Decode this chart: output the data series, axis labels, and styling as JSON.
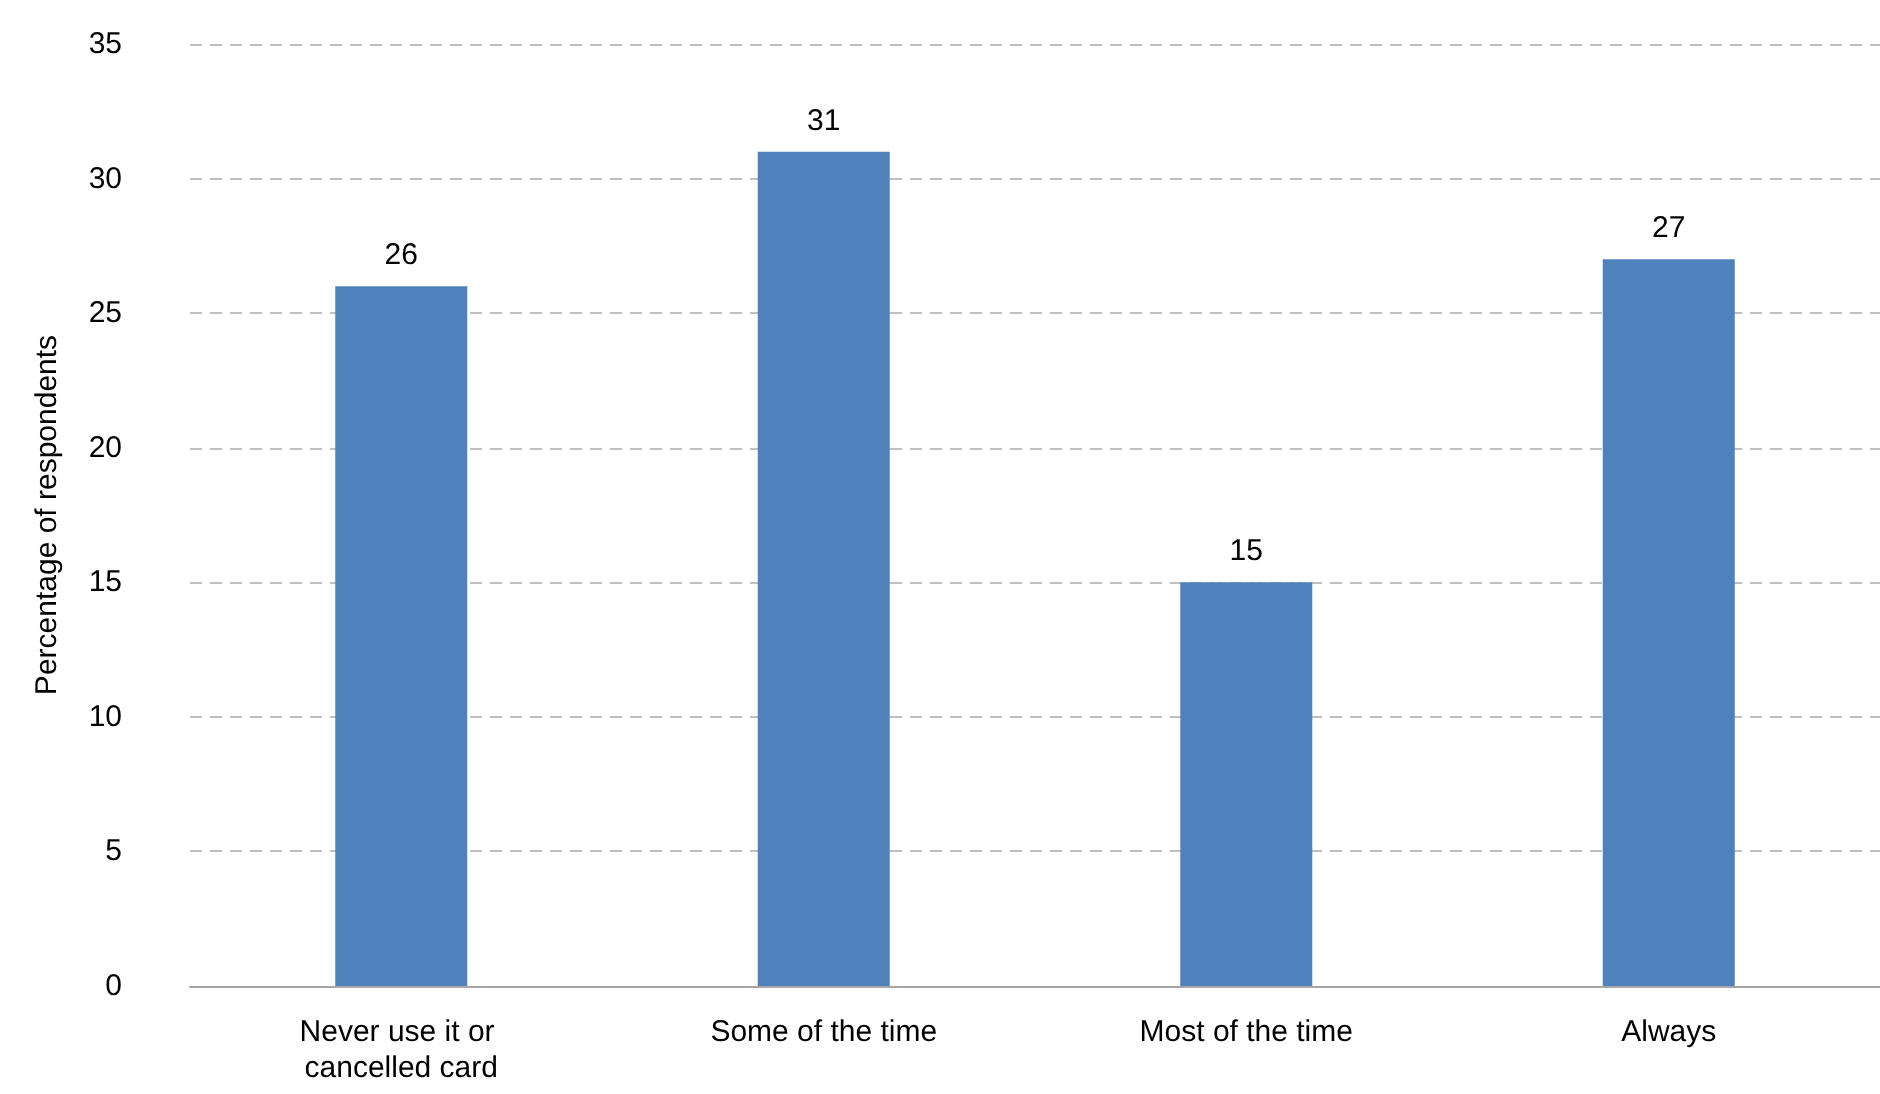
{
  "chart_data": {
    "type": "bar",
    "ylabel": "Percentage of respondents",
    "categories": [
      "Never use it or cancelled card",
      "Some of the time",
      "Most of the time",
      "Always"
    ],
    "values": [
      26,
      31,
      15,
      27
    ],
    "color": "#4f81bd",
    "ylim": [
      0,
      35
    ],
    "yticks": [
      0,
      5,
      10,
      15,
      20,
      25,
      30,
      35
    ],
    "grid": "y",
    "data_labels": true
  }
}
